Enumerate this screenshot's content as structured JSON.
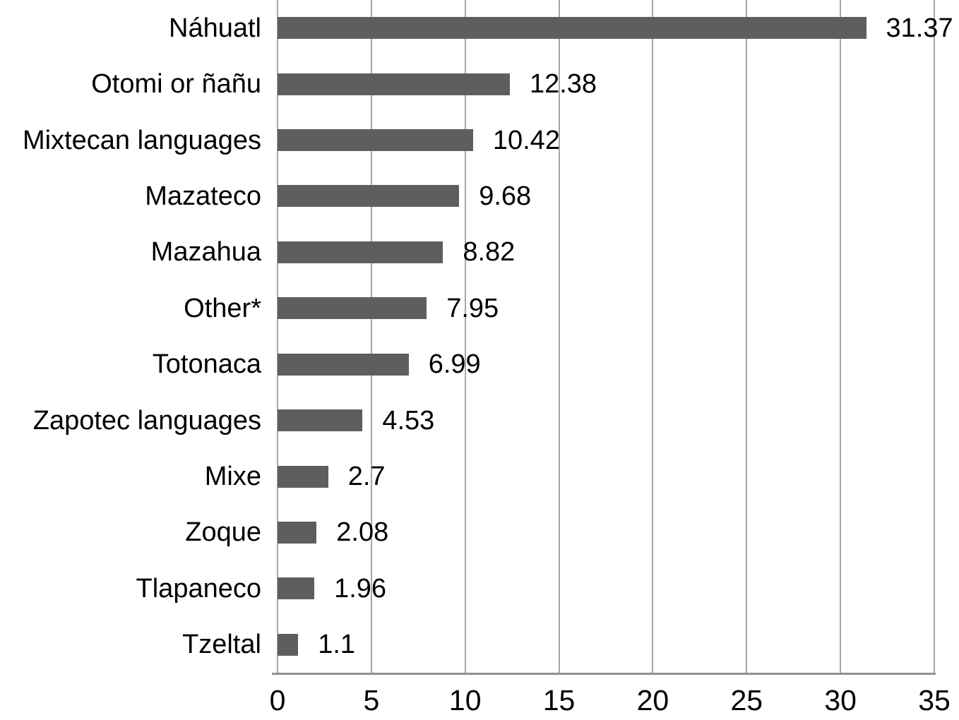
{
  "chart_data": {
    "type": "bar",
    "orientation": "horizontal",
    "title": "",
    "xlabel": "",
    "ylabel": "",
    "categories": [
      "Náhuatl",
      "Otomi or ñañu",
      "Mixtecan languages",
      "Mazateco",
      "Mazahua",
      "Other*",
      "Totonaca",
      "Zapotec languages",
      "Mixe",
      "Zoque",
      "Tlapaneco",
      "Tzeltal"
    ],
    "values": [
      31.37,
      12.38,
      10.42,
      9.68,
      8.82,
      7.95,
      6.99,
      4.53,
      2.7,
      2.08,
      1.96,
      1.1
    ],
    "value_labels": [
      "31.37",
      "12.38",
      "10.42",
      "9.68",
      "8.82",
      "7.95",
      "6.99",
      "4.53",
      "2.7",
      "2.08",
      "1.96",
      "1.1"
    ],
    "xlim": [
      0,
      35
    ],
    "x_ticks": [
      0,
      5,
      10,
      15,
      20,
      25,
      30,
      35
    ],
    "grid": "vertical-gridlines",
    "legend": "none",
    "colors": {
      "bar": "#5e5e5e",
      "gridline": "#a6a6a6",
      "axis_line": "#919191",
      "text": "#000000",
      "background": "#ffffff"
    }
  }
}
